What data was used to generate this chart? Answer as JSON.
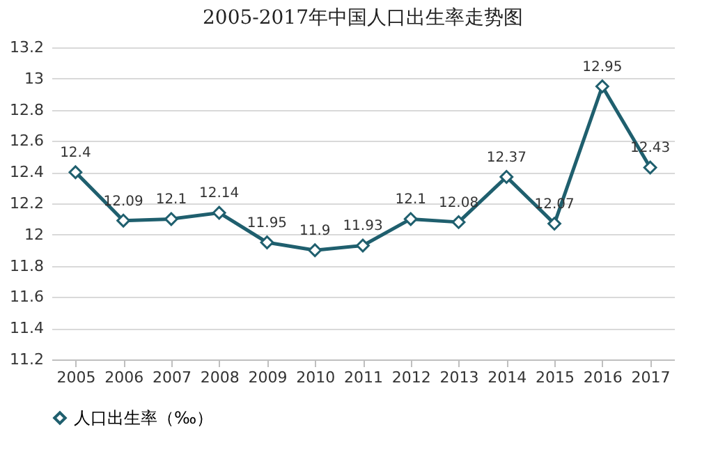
{
  "chart_data": {
    "type": "line",
    "title": "2005-2017年中国人口出生率走势图",
    "categories": [
      "2005",
      "2006",
      "2007",
      "2008",
      "2009",
      "2010",
      "2011",
      "2012",
      "2013",
      "2014",
      "2015",
      "2016",
      "2017"
    ],
    "series": [
      {
        "name": "人口出生率（‰）",
        "color": "#1f5f6e",
        "values": [
          12.4,
          12.09,
          12.1,
          12.14,
          11.95,
          11.9,
          11.93,
          12.1,
          12.08,
          12.37,
          12.07,
          12.95,
          12.43
        ]
      }
    ],
    "ylim": [
      11.2,
      13.2
    ],
    "yticks": [
      11.2,
      11.4,
      11.6,
      11.8,
      12,
      12.2,
      12.4,
      12.6,
      12.8,
      13,
      13.2
    ],
    "grid": "y",
    "legend": "bottom",
    "marker": "diamond",
    "line_style": "solid",
    "data_labels": true
  }
}
